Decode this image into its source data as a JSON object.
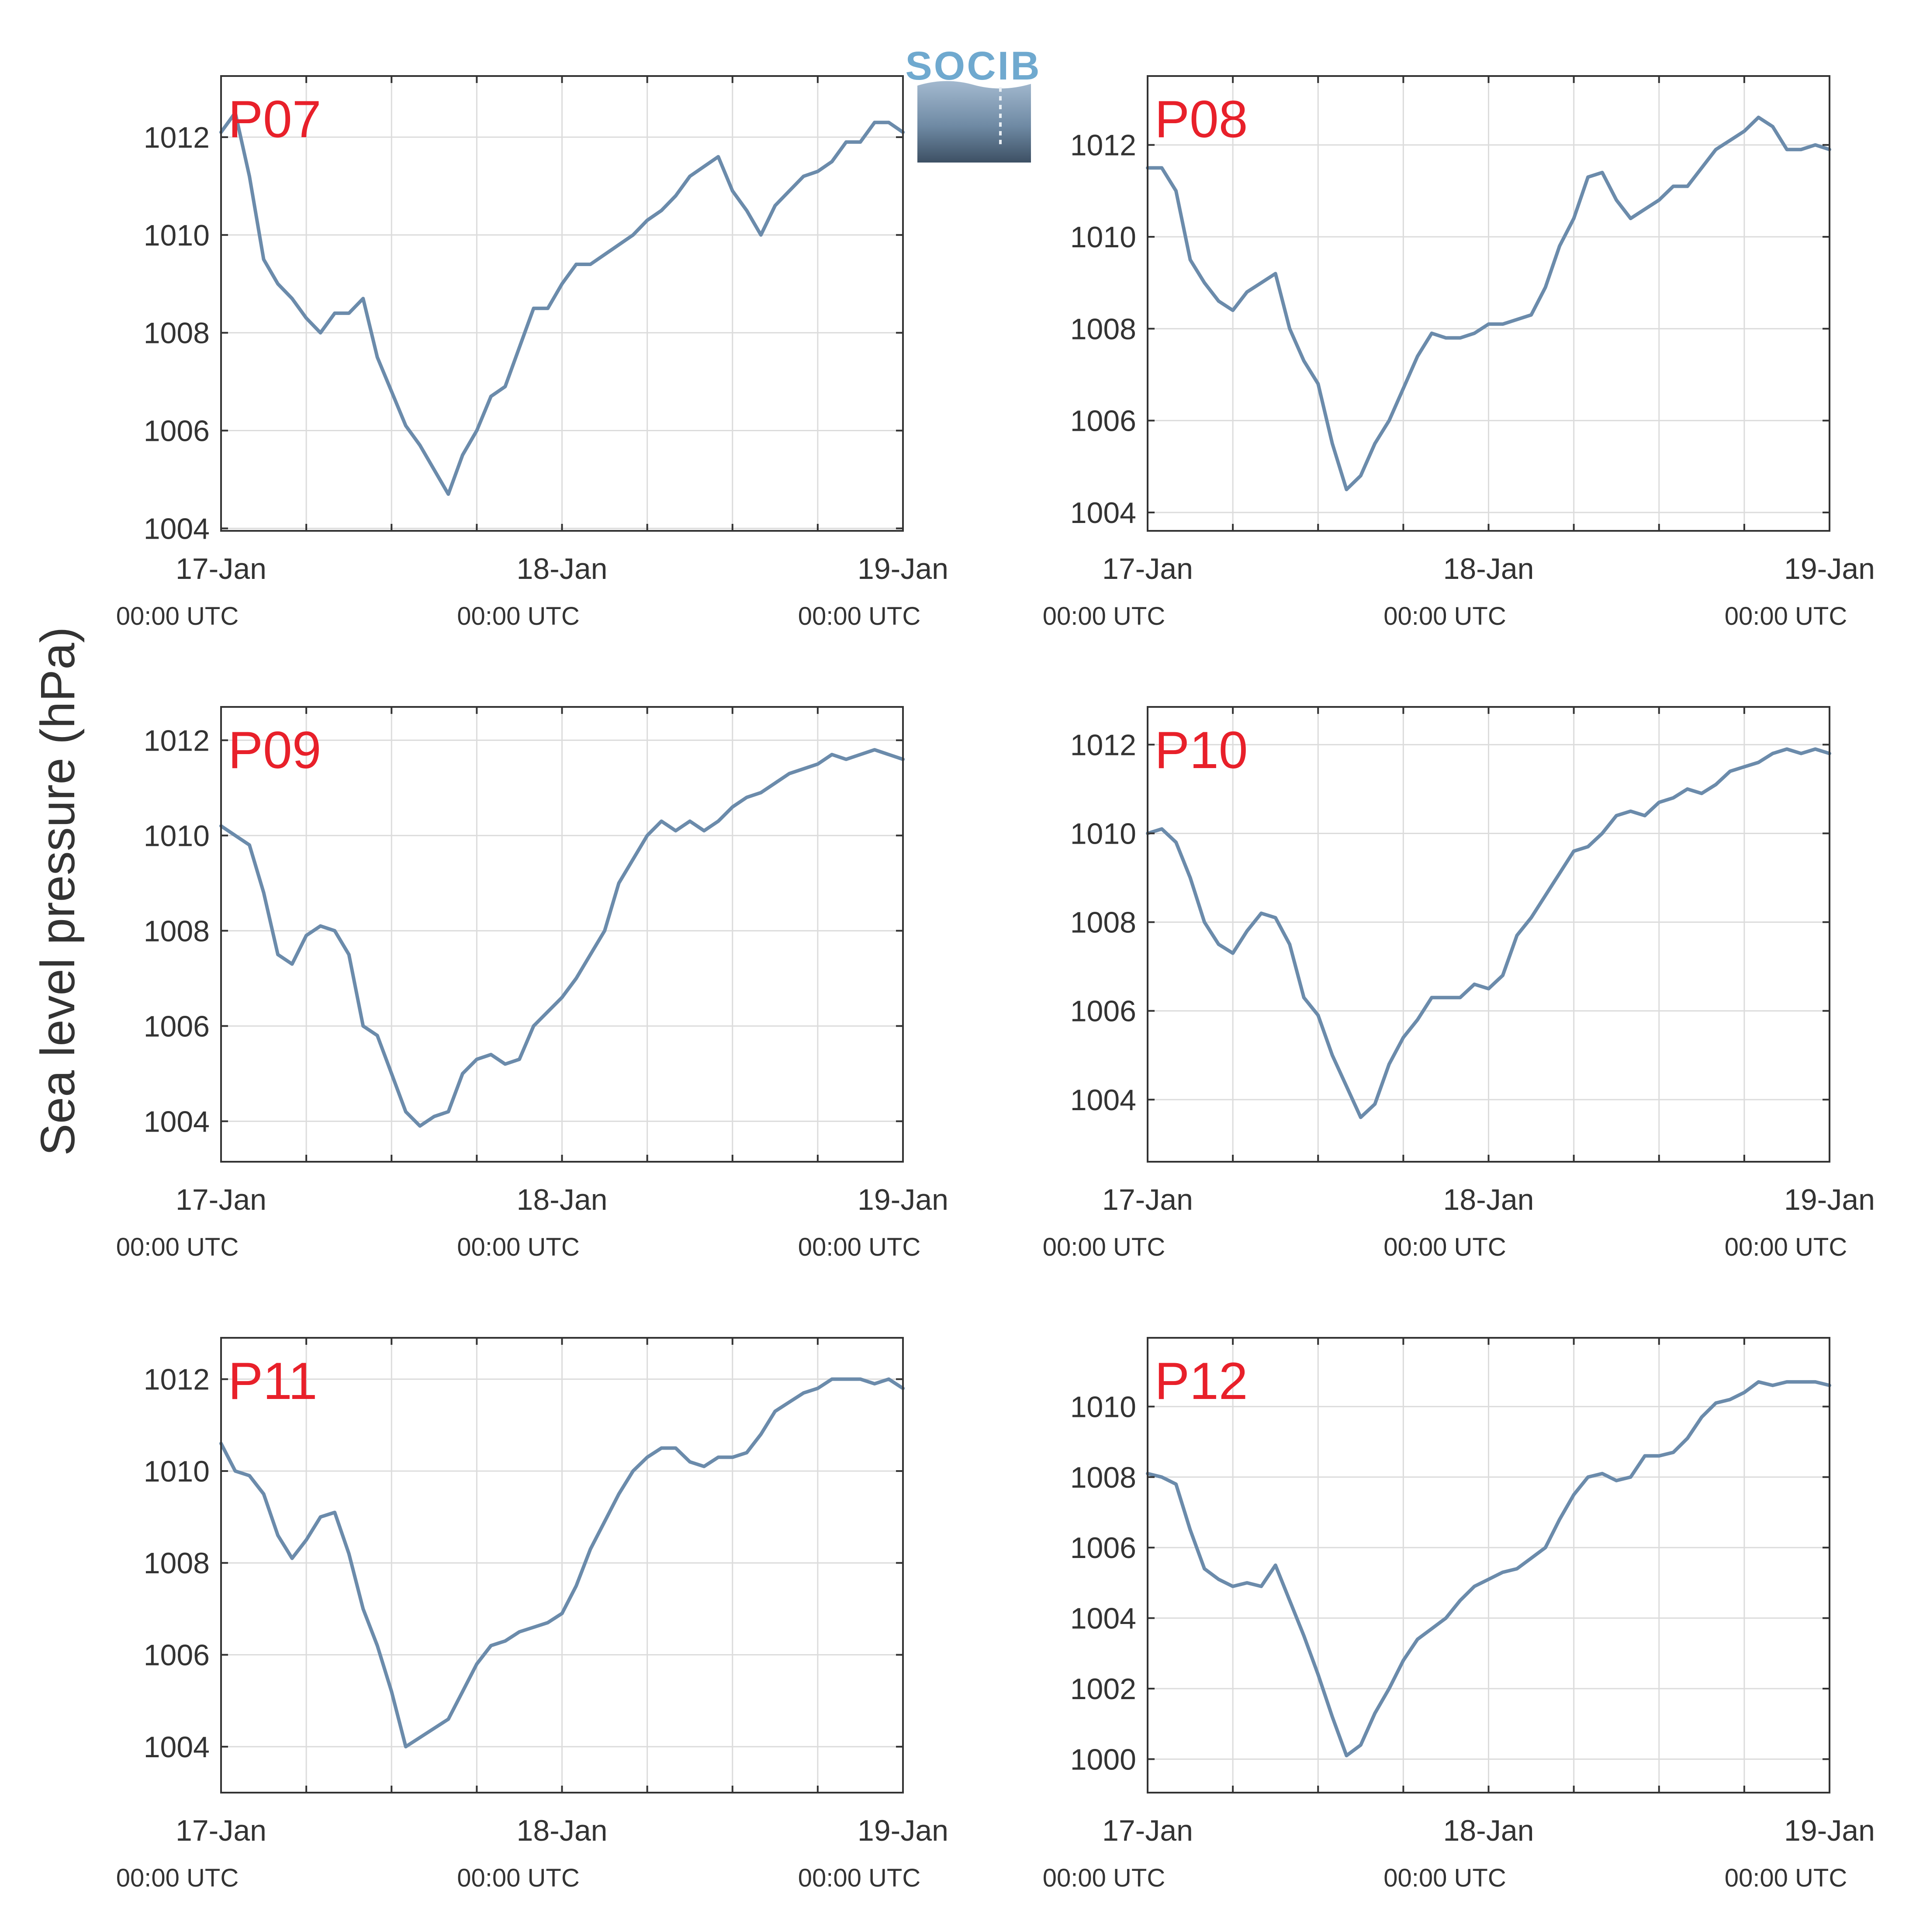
{
  "figure": {
    "ylabel": "Sea level pressure (hPa)",
    "logo_text": "SOCIB",
    "line_color": "#6b8bab",
    "station_label_color": "#e8202a",
    "grid_color": "#dcdcdc",
    "axis_color": "#333333"
  },
  "chart_data": [
    {
      "type": "line",
      "title": "P07",
      "ylabel": "Sea level pressure (hPa)",
      "x_range": [
        "2024-01-17 00:00 UTC",
        "2024-01-19 00:00 UTC"
      ],
      "x_tick_labels": [
        [
          "17-Jan",
          "00:00 UTC"
        ],
        [
          "18-Jan",
          "00:00 UTC"
        ],
        [
          "19-Jan",
          "00:00 UTC"
        ]
      ],
      "ylim": [
        1003.95,
        1013.25
      ],
      "yticks": [
        1004,
        1006,
        1008,
        1010,
        1012
      ],
      "grid": true,
      "series": [
        {
          "x_hours": [
            0,
            1,
            2,
            3,
            4,
            5,
            6,
            7,
            8,
            9,
            10,
            11,
            12,
            13,
            14,
            15,
            16,
            17,
            18,
            19,
            20,
            21,
            22,
            23,
            24,
            25,
            26,
            27,
            28,
            29,
            30,
            31,
            32,
            33,
            34,
            35,
            36,
            37,
            38,
            39,
            40,
            41,
            42,
            43,
            44,
            45,
            46,
            47,
            48
          ],
          "values": [
            1012.1,
            1012.5,
            1011.2,
            1009.5,
            1009.0,
            1008.7,
            1008.3,
            1008.0,
            1008.4,
            1008.4,
            1008.7,
            1007.5,
            1006.8,
            1006.1,
            1005.7,
            1005.2,
            1004.7,
            1005.5,
            1006.0,
            1006.7,
            1006.9,
            1007.7,
            1008.5,
            1008.5,
            1009.0,
            1009.4,
            1009.4,
            1009.6,
            1009.8,
            1010.0,
            1010.3,
            1010.5,
            1010.8,
            1011.2,
            1011.4,
            1011.6,
            1010.9,
            1010.5,
            1010.0,
            1010.6,
            1010.9,
            1011.2,
            1011.3,
            1011.5,
            1011.9,
            1011.9,
            1012.3,
            1012.3,
            1012.1
          ]
        }
      ]
    },
    {
      "type": "line",
      "title": "P08",
      "ylabel": "Sea level pressure (hPa)",
      "x_range": [
        "2024-01-17 00:00 UTC",
        "2024-01-19 00:00 UTC"
      ],
      "x_tick_labels": [
        [
          "17-Jan",
          "00:00 UTC"
        ],
        [
          "18-Jan",
          "00:00 UTC"
        ],
        [
          "19-Jan",
          "00:00 UTC"
        ]
      ],
      "ylim": [
        1003.6,
        1013.5
      ],
      "yticks": [
        1004,
        1006,
        1008,
        1010,
        1012
      ],
      "grid": true,
      "series": [
        {
          "x_hours": [
            0,
            1,
            2,
            3,
            4,
            5,
            6,
            7,
            8,
            9,
            10,
            11,
            12,
            13,
            14,
            15,
            16,
            17,
            18,
            19,
            20,
            21,
            22,
            23,
            24,
            25,
            26,
            27,
            28,
            29,
            30,
            31,
            32,
            33,
            34,
            35,
            36,
            37,
            38,
            39,
            40,
            41,
            42,
            43,
            44,
            45,
            46,
            47,
            48
          ],
          "values": [
            1011.5,
            1011.5,
            1011.0,
            1009.5,
            1009.0,
            1008.6,
            1008.4,
            1008.8,
            1009.0,
            1009.2,
            1008.0,
            1007.3,
            1006.8,
            1005.5,
            1004.5,
            1004.8,
            1005.5,
            1006.0,
            1006.7,
            1007.4,
            1007.9,
            1007.8,
            1007.8,
            1007.9,
            1008.1,
            1008.1,
            1008.2,
            1008.3,
            1008.9,
            1009.8,
            1010.4,
            1011.3,
            1011.4,
            1010.8,
            1010.4,
            1010.6,
            1010.8,
            1011.1,
            1011.1,
            1011.5,
            1011.9,
            1012.1,
            1012.3,
            1012.6,
            1012.4,
            1011.9,
            1011.9,
            1012.0,
            1011.9
          ]
        }
      ]
    },
    {
      "type": "line",
      "title": "P09",
      "ylabel": "Sea level pressure (hPa)",
      "x_range": [
        "2024-01-17 00:00 UTC",
        "2024-01-19 00:00 UTC"
      ],
      "x_tick_labels": [
        [
          "17-Jan",
          "00:00 UTC"
        ],
        [
          "18-Jan",
          "00:00 UTC"
        ],
        [
          "19-Jan",
          "00:00 UTC"
        ]
      ],
      "ylim": [
        1003.15,
        1012.7
      ],
      "yticks": [
        1004,
        1006,
        1008,
        1010,
        1012
      ],
      "grid": true,
      "series": [
        {
          "x_hours": [
            0,
            1,
            2,
            3,
            4,
            5,
            6,
            7,
            8,
            9,
            10,
            11,
            12,
            13,
            14,
            15,
            16,
            17,
            18,
            19,
            20,
            21,
            22,
            23,
            24,
            25,
            26,
            27,
            28,
            29,
            30,
            31,
            32,
            33,
            34,
            35,
            36,
            37,
            38,
            39,
            40,
            41,
            42,
            43,
            44,
            45,
            46,
            47,
            48
          ],
          "values": [
            1010.2,
            1010.0,
            1009.8,
            1008.8,
            1007.5,
            1007.3,
            1007.9,
            1008.1,
            1008.0,
            1007.5,
            1006.0,
            1005.8,
            1005.0,
            1004.2,
            1003.9,
            1004.1,
            1004.2,
            1005.0,
            1005.3,
            1005.4,
            1005.2,
            1005.3,
            1006.0,
            1006.3,
            1006.6,
            1007.0,
            1007.5,
            1008.0,
            1009.0,
            1009.5,
            1010.0,
            1010.3,
            1010.1,
            1010.3,
            1010.1,
            1010.3,
            1010.6,
            1010.8,
            1010.9,
            1011.1,
            1011.3,
            1011.4,
            1011.5,
            1011.7,
            1011.6,
            1011.7,
            1011.8,
            1011.7,
            1011.6
          ]
        }
      ]
    },
    {
      "type": "line",
      "title": "P10",
      "ylabel": "Sea level pressure (hPa)",
      "x_range": [
        "2024-01-17 00:00 UTC",
        "2024-01-19 00:00 UTC"
      ],
      "x_tick_labels": [
        [
          "17-Jan",
          "00:00 UTC"
        ],
        [
          "18-Jan",
          "00:00 UTC"
        ],
        [
          "19-Jan",
          "00:00 UTC"
        ]
      ],
      "ylim": [
        1002.6,
        1012.85
      ],
      "yticks": [
        1004,
        1006,
        1008,
        1010,
        1012
      ],
      "grid": true,
      "series": [
        {
          "x_hours": [
            0,
            1,
            2,
            3,
            4,
            5,
            6,
            7,
            8,
            9,
            10,
            11,
            12,
            13,
            14,
            15,
            16,
            17,
            18,
            19,
            20,
            21,
            22,
            23,
            24,
            25,
            26,
            27,
            28,
            29,
            30,
            31,
            32,
            33,
            34,
            35,
            36,
            37,
            38,
            39,
            40,
            41,
            42,
            43,
            44,
            45,
            46,
            47,
            48
          ],
          "values": [
            1010.0,
            1010.1,
            1009.8,
            1009.0,
            1008.0,
            1007.5,
            1007.3,
            1007.8,
            1008.2,
            1008.1,
            1007.5,
            1006.3,
            1005.9,
            1005.0,
            1004.3,
            1003.6,
            1003.9,
            1004.8,
            1005.4,
            1005.8,
            1006.3,
            1006.3,
            1006.3,
            1006.6,
            1006.5,
            1006.8,
            1007.7,
            1008.1,
            1008.6,
            1009.1,
            1009.6,
            1009.7,
            1010.0,
            1010.4,
            1010.5,
            1010.4,
            1010.7,
            1010.8,
            1011.0,
            1010.9,
            1011.1,
            1011.4,
            1011.5,
            1011.6,
            1011.8,
            1011.9,
            1011.8,
            1011.9,
            1011.8
          ]
        }
      ]
    },
    {
      "type": "line",
      "title": "P11",
      "ylabel": "Sea level pressure (hPa)",
      "x_range": [
        "2024-01-17 00:00 UTC",
        "2024-01-19 00:00 UTC"
      ],
      "x_tick_labels": [
        [
          "17-Jan",
          "00:00 UTC"
        ],
        [
          "18-Jan",
          "00:00 UTC"
        ],
        [
          "19-Jan",
          "00:00 UTC"
        ]
      ],
      "ylim": [
        1003.0,
        1012.9
      ],
      "yticks": [
        1004,
        1006,
        1008,
        1010,
        1012
      ],
      "grid": true,
      "series": [
        {
          "x_hours": [
            0,
            1,
            2,
            3,
            4,
            5,
            6,
            7,
            8,
            9,
            10,
            11,
            12,
            13,
            14,
            15,
            16,
            17,
            18,
            19,
            20,
            21,
            22,
            23,
            24,
            25,
            26,
            27,
            28,
            29,
            30,
            31,
            32,
            33,
            34,
            35,
            36,
            37,
            38,
            39,
            40,
            41,
            42,
            43,
            44,
            45,
            46,
            47,
            48
          ],
          "values": [
            1010.6,
            1010.0,
            1009.9,
            1009.5,
            1008.6,
            1008.1,
            1008.5,
            1009.0,
            1009.1,
            1008.2,
            1007.0,
            1006.2,
            1005.2,
            1004.0,
            1004.2,
            1004.4,
            1004.6,
            1005.2,
            1005.8,
            1006.2,
            1006.3,
            1006.5,
            1006.6,
            1006.7,
            1006.9,
            1007.5,
            1008.3,
            1008.9,
            1009.5,
            1010.0,
            1010.3,
            1010.5,
            1010.5,
            1010.2,
            1010.1,
            1010.3,
            1010.3,
            1010.4,
            1010.8,
            1011.3,
            1011.5,
            1011.7,
            1011.8,
            1012.0,
            1012.0,
            1012.0,
            1011.9,
            1012.0,
            1011.8
          ]
        }
      ]
    },
    {
      "type": "line",
      "title": "P12",
      "ylabel": "Sea level pressure (hPa)",
      "x_range": [
        "2024-01-17 00:00 UTC",
        "2024-01-19 00:00 UTC"
      ],
      "x_tick_labels": [
        [
          "17-Jan",
          "00:00 UTC"
        ],
        [
          "18-Jan",
          "00:00 UTC"
        ],
        [
          "19-Jan",
          "00:00 UTC"
        ]
      ],
      "ylim": [
        999.05,
        1011.95
      ],
      "yticks": [
        1000,
        1002,
        1004,
        1006,
        1008,
        1010
      ],
      "grid": true,
      "series": [
        {
          "x_hours": [
            0,
            1,
            2,
            3,
            4,
            5,
            6,
            7,
            8,
            9,
            10,
            11,
            12,
            13,
            14,
            15,
            16,
            17,
            18,
            19,
            20,
            21,
            22,
            23,
            24,
            25,
            26,
            27,
            28,
            29,
            30,
            31,
            32,
            33,
            34,
            35,
            36,
            37,
            38,
            39,
            40,
            41,
            42,
            43,
            44,
            45,
            46,
            47,
            48
          ],
          "values": [
            1008.1,
            1008.0,
            1007.8,
            1006.5,
            1005.4,
            1005.1,
            1004.9,
            1005.0,
            1004.9,
            1005.5,
            1004.5,
            1003.5,
            1002.4,
            1001.2,
            1000.1,
            1000.4,
            1001.3,
            1002.0,
            1002.8,
            1003.4,
            1003.7,
            1004.0,
            1004.5,
            1004.9,
            1005.1,
            1005.3,
            1005.4,
            1005.7,
            1006.0,
            1006.8,
            1007.5,
            1008.0,
            1008.1,
            1007.9,
            1008.0,
            1008.6,
            1008.6,
            1008.7,
            1009.1,
            1009.7,
            1010.1,
            1010.2,
            1010.4,
            1010.7,
            1010.6,
            1010.7,
            1010.7,
            1010.7,
            1010.6
          ]
        }
      ]
    }
  ]
}
